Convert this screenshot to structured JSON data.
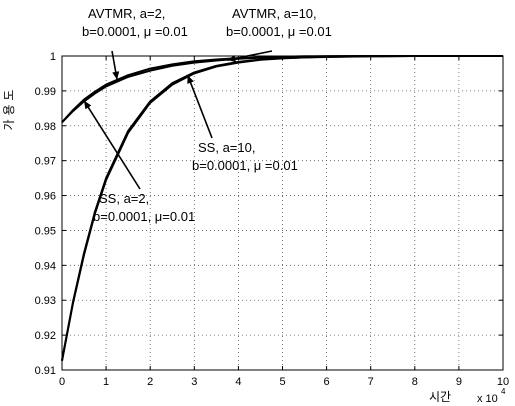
{
  "chart_data": {
    "type": "line",
    "title": "",
    "xlabel": "시간",
    "xscale_label": "x 10",
    "xscale_exp": "4",
    "ylabel": "가 용 도",
    "xlim": [
      0,
      10
    ],
    "ylim": [
      0.91,
      1.0
    ],
    "grid": true,
    "x_ticks": [
      "0",
      "1",
      "2",
      "3",
      "4",
      "5",
      "6",
      "7",
      "8",
      "9",
      "10"
    ],
    "y_ticks": [
      "0.91",
      "0.92",
      "0.93",
      "0.94",
      "0.95",
      "0.96",
      "0.97",
      "0.98",
      "0.99",
      "1"
    ],
    "series": [
      {
        "name": "AVTMR, a=2, b=0.0001, μ=0.01",
        "x": [
          0,
          0.25,
          0.5,
          0.75,
          1,
          1.5,
          2,
          2.5,
          3,
          3.5,
          4,
          4.5,
          5,
          5.5,
          6,
          7,
          8,
          9,
          10
        ],
        "values": [
          0.981,
          0.9845,
          0.9875,
          0.9898,
          0.9918,
          0.9945,
          0.9964,
          0.9976,
          0.9985,
          0.999,
          0.9994,
          0.9996,
          0.9998,
          0.9999,
          0.9999,
          1.0,
          1.0,
          1.0,
          1.0
        ]
      },
      {
        "name": "AVTMR, a=10, b=0.0001, μ=0.01",
        "x": [
          0,
          0.25,
          0.5,
          0.75,
          1,
          1.5,
          2,
          2.5,
          3,
          3.5,
          4,
          4.5,
          5,
          5.5,
          6,
          7,
          8,
          9,
          10
        ],
        "values": [
          0.9128,
          0.9295,
          0.9435,
          0.9555,
          0.965,
          0.9785,
          0.987,
          0.9922,
          0.9953,
          0.9972,
          0.9983,
          0.999,
          0.9994,
          0.9996,
          0.9998,
          0.9999,
          1.0,
          1.0,
          1.0
        ]
      },
      {
        "name": "SS, a=2, b=0.0001, μ=0.01",
        "x": [
          0,
          0.25,
          0.5,
          0.75,
          1,
          1.5,
          2,
          2.5,
          3,
          3.5,
          4,
          4.5,
          5,
          5.5,
          6,
          7,
          8,
          9,
          10
        ],
        "values": [
          0.981,
          0.9842,
          0.987,
          0.9893,
          0.9913,
          0.994,
          0.9958,
          0.9972,
          0.9981,
          0.9987,
          0.9992,
          0.9995,
          0.9997,
          0.9998,
          0.9999,
          1.0,
          1.0,
          1.0,
          1.0
        ]
      },
      {
        "name": "SS, a=10, b=0.0001, μ=0.01",
        "x": [
          0,
          0.25,
          0.5,
          0.75,
          1,
          1.5,
          2,
          2.5,
          3,
          3.5,
          4,
          4.5,
          5,
          5.5,
          6,
          7,
          8,
          9,
          10
        ],
        "values": [
          0.9126,
          0.9292,
          0.943,
          0.955,
          0.9645,
          0.978,
          0.9866,
          0.9918,
          0.995,
          0.997,
          0.9981,
          0.9989,
          0.9993,
          0.9996,
          0.9997,
          0.9999,
          1.0,
          1.0,
          1.0
        ]
      }
    ],
    "annotations": [
      {
        "id": "avtmr-a2",
        "lines": [
          "AVTMR, a=2,",
          "b=0.0001, μ =0.01"
        ],
        "point_x": 1.25,
        "point_y": 0.9932
      },
      {
        "id": "avtmr-a10",
        "lines": [
          "AVTMR, a=10,",
          "b=0.0001, μ =0.01"
        ],
        "point_x": 3.75,
        "point_y": 0.9988
      },
      {
        "id": "ss-a10",
        "lines": [
          "SS, a=10,",
          "b=0.0001, μ =0.01"
        ],
        "point_x": 2.85,
        "point_y": 0.9945
      },
      {
        "id": "ss-a2",
        "lines": [
          "SS, a=2,",
          "b=0.0001, μ=0.01"
        ],
        "point_x": 0.5,
        "point_y": 0.9872
      }
    ]
  }
}
